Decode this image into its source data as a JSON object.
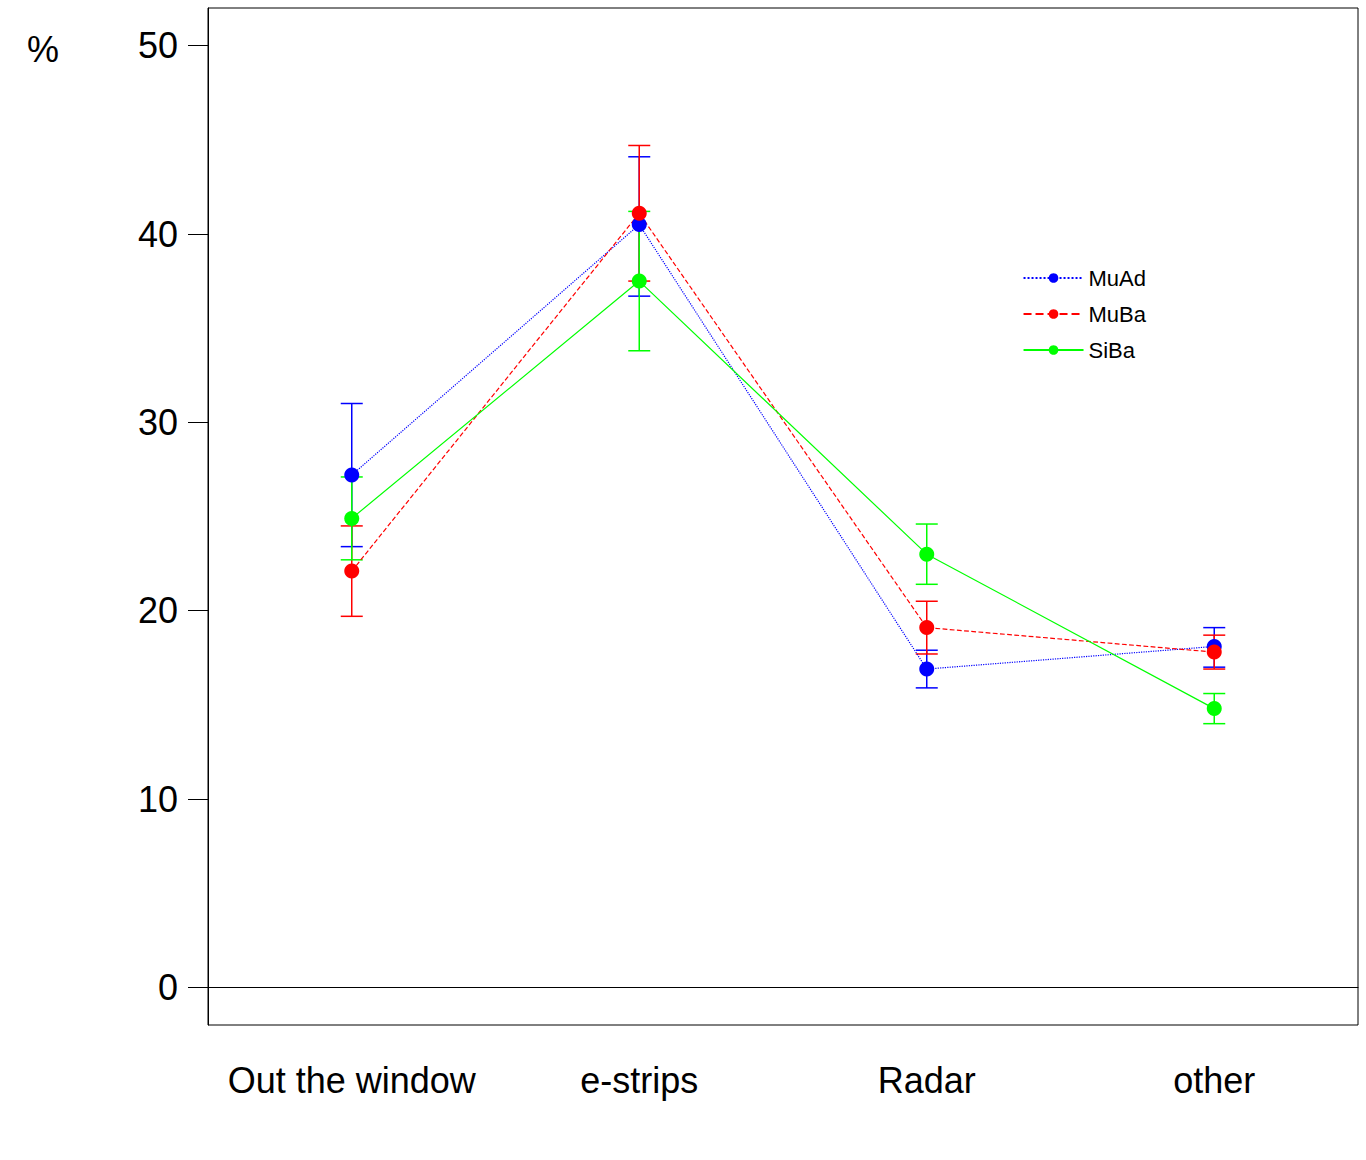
{
  "chart_data": {
    "type": "line",
    "y_label": "%",
    "categories": [
      "Out the window",
      "e-strips",
      "Radar",
      "other"
    ],
    "series": [
      {
        "name": "MuAd",
        "color": "#0000FF",
        "line_style": "dotted",
        "marker": "circle",
        "values": [
          27.2,
          40.5,
          16.9,
          18.1
        ],
        "error_low": [
          23.4,
          36.7,
          15.9,
          17.0
        ],
        "error_high": [
          31.0,
          44.1,
          17.9,
          19.1
        ]
      },
      {
        "name": "MuBa",
        "color": "#FF0000",
        "line_style": "dashed",
        "marker": "circle",
        "values": [
          22.1,
          41.1,
          19.1,
          17.8
        ],
        "error_low": [
          19.7,
          37.5,
          17.7,
          16.9
        ],
        "error_high": [
          24.5,
          44.7,
          20.5,
          18.7
        ]
      },
      {
        "name": "SiBa",
        "color": "#00FF00",
        "line_style": "solid",
        "marker": "circle",
        "values": [
          24.9,
          37.5,
          23.0,
          14.8
        ],
        "error_low": [
          22.7,
          33.8,
          21.4,
          14.0
        ],
        "error_high": [
          27.1,
          41.2,
          24.6,
          15.6
        ]
      }
    ],
    "ylim": [
      -2,
      52
    ],
    "yticks": [
      0,
      10,
      20,
      30,
      40,
      50
    ],
    "grid": false,
    "legend": "right"
  }
}
